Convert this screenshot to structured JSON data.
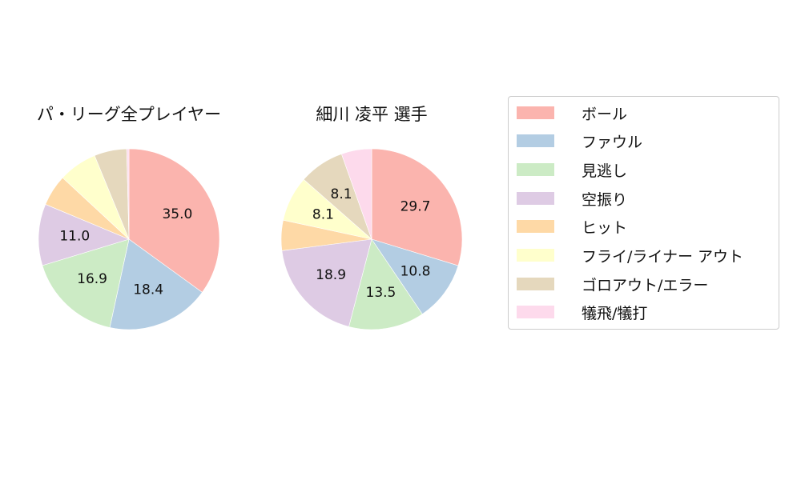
{
  "legend": {
    "items": [
      {
        "label": "ボール",
        "color": "#fbb4ae"
      },
      {
        "label": "ファウル",
        "color": "#b3cde3"
      },
      {
        "label": "見逃し",
        "color": "#ccebc5"
      },
      {
        "label": "空振り",
        "color": "#decbe4"
      },
      {
        "label": "ヒット",
        "color": "#fed9a6"
      },
      {
        "label": "フライ/ライナー アウト",
        "color": "#ffffcc"
      },
      {
        "label": "ゴロアウト/エラー",
        "color": "#e5d8bd"
      },
      {
        "label": "犠飛/犠打",
        "color": "#fddaec"
      }
    ]
  },
  "chart_data": [
    {
      "type": "pie",
      "title": "パ・リーグ全プレイヤー",
      "categories": [
        "ボール",
        "ファウル",
        "見逃し",
        "空振り",
        "ヒット",
        "フライ/ライナー アウト",
        "ゴロアウト/エラー",
        "犠飛/犠打"
      ],
      "values": [
        35.0,
        18.4,
        16.9,
        11.0,
        5.6,
        6.9,
        5.8,
        0.4
      ],
      "labels_shown": [
        "35.0",
        "18.4",
        "16.9",
        "11.0",
        "",
        "",
        "",
        ""
      ],
      "start_angle": 90,
      "direction": "clockwise"
    },
    {
      "type": "pie",
      "title": "細川 凌平  選手",
      "categories": [
        "ボール",
        "ファウル",
        "見逃し",
        "空振り",
        "ヒット",
        "フライ/ライナー アウト",
        "ゴロアウト/エラー",
        "犠飛/犠打"
      ],
      "values": [
        29.7,
        10.8,
        13.5,
        18.9,
        5.4,
        8.1,
        8.1,
        5.4
      ],
      "labels_shown": [
        "29.7",
        "10.8",
        "13.5",
        "18.9",
        "",
        "8.1",
        "8.1",
        ""
      ],
      "start_angle": 90,
      "direction": "clockwise"
    }
  ]
}
